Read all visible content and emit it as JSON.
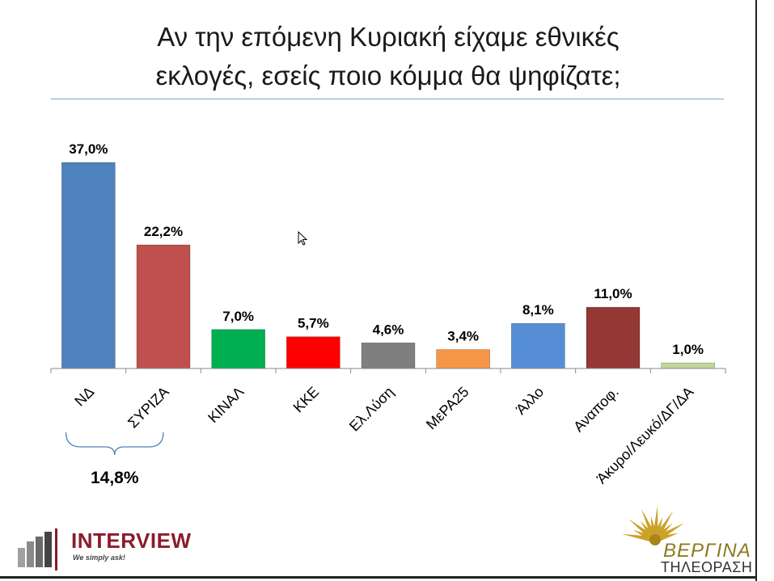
{
  "title": {
    "line1": "Αν την επόμενη Κυριακή είχαμε εθνικές",
    "line2": "εκλογές, εσείς ποιο κόμμα θα ψηφίζατε;"
  },
  "chart_data": {
    "type": "bar",
    "categories": [
      "ΝΔ",
      "ΣΥΡΙΖΑ",
      "ΚΙΝΑΛ",
      "ΚΚΕ",
      "Ελ.Λύση",
      "ΜεΡΑ25",
      "Άλλο",
      "Αναποφ.",
      "Άκυρο/Λευκό/ΔΓ/ΔΑ"
    ],
    "values": [
      37.0,
      22.2,
      7.0,
      5.7,
      4.6,
      3.4,
      8.1,
      11.0,
      1.0
    ],
    "data_labels": [
      "37,0%",
      "22,2%",
      "7,0%",
      "5,7%",
      "4,6%",
      "3,4%",
      "8,1%",
      "11,0%",
      "1,0%"
    ],
    "colors": [
      "#4f81bd",
      "#c0504d",
      "#00b050",
      "#ff0000",
      "#7f7f7f",
      "#f79646",
      "#558ed5",
      "#953735",
      "#c3d69b"
    ],
    "ylim": [
      0,
      37.0
    ],
    "grid": false,
    "legend": "none",
    "annotation": {
      "text": "14,8%",
      "bracket_categories": [
        "ΝΔ",
        "ΣΥΡΙΖΑ"
      ],
      "bracket_color": "#4f81bd"
    }
  },
  "logos": {
    "interview": {
      "name": "INTERVIEW",
      "tagline": "We simply ask!",
      "color": "#8b1c2c"
    },
    "vergina": {
      "name": "ΒΕΡΓΙΝΑ",
      "subtitle": "ΤΗΛΕΟΡΑΣΗ",
      "color": "#c9a227"
    }
  }
}
